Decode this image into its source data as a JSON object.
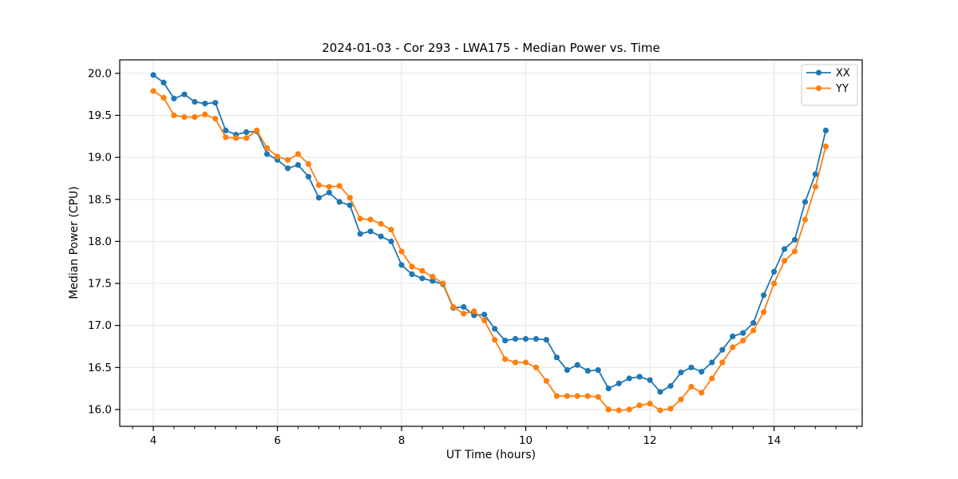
{
  "chart_data": {
    "type": "line",
    "title": "2024-01-03 - Cor 293 - LWA175 - Median Power vs. Time",
    "xlabel": "UT Time (hours)",
    "ylabel": "Median Power (CPU)",
    "xlim": [
      3.46,
      15.42
    ],
    "ylim": [
      15.8,
      20.16
    ],
    "xticks": [
      4,
      6,
      8,
      10,
      12,
      14
    ],
    "xtick_labels": [
      "4",
      "6",
      "8",
      "10",
      "12",
      "14"
    ],
    "yticks": [
      16.0,
      16.5,
      17.0,
      17.5,
      18.0,
      18.5,
      19.0,
      19.5,
      20.0
    ],
    "ytick_labels": [
      "16.0",
      "16.5",
      "17.0",
      "17.5",
      "18.0",
      "18.5",
      "19.0",
      "19.5",
      "20.0"
    ],
    "x_minor_step": 0.3333,
    "grid": true,
    "grid_color": "#e5e5e5",
    "axes_color": "#000000",
    "background": "#ffffff",
    "marker": "circle",
    "legend": {
      "position": "upper right"
    },
    "x": [
      4.0,
      4.167,
      4.333,
      4.5,
      4.667,
      4.833,
      5.0,
      5.167,
      5.333,
      5.5,
      5.667,
      5.833,
      6.0,
      6.167,
      6.333,
      6.5,
      6.667,
      6.833,
      7.0,
      7.167,
      7.333,
      7.5,
      7.667,
      7.833,
      8.0,
      8.167,
      8.333,
      8.5,
      8.667,
      8.833,
      9.0,
      9.167,
      9.333,
      9.5,
      9.667,
      9.833,
      10.0,
      10.167,
      10.333,
      10.5,
      10.667,
      10.833,
      11.0,
      11.167,
      11.333,
      11.5,
      11.667,
      11.833,
      12.0,
      12.167,
      12.333,
      12.5,
      12.667,
      12.833,
      13.0,
      13.167,
      13.333,
      13.5,
      13.667,
      13.833,
      14.0,
      14.167,
      14.333,
      14.5,
      14.667,
      14.833
    ],
    "series": [
      {
        "name": "XX",
        "color": "#1f77b4",
        "values": [
          19.98,
          19.89,
          19.7,
          19.75,
          19.66,
          19.64,
          19.65,
          19.32,
          19.27,
          19.3,
          19.31,
          19.04,
          18.97,
          18.87,
          18.91,
          18.77,
          18.52,
          18.58,
          18.47,
          18.43,
          18.09,
          18.12,
          18.06,
          18.0,
          17.72,
          17.61,
          17.56,
          17.53,
          17.49,
          17.21,
          17.22,
          17.12,
          17.13,
          16.96,
          16.82,
          16.84,
          16.84,
          16.84,
          16.83,
          16.62,
          16.47,
          16.53,
          16.46,
          16.47,
          16.25,
          16.31,
          16.37,
          16.39,
          16.35,
          16.21,
          16.28,
          16.44,
          16.5,
          16.45,
          16.56,
          16.71,
          16.87,
          16.91,
          17.03,
          17.36,
          17.64,
          17.91,
          18.02,
          18.47,
          18.8,
          19.32
        ]
      },
      {
        "name": "YY",
        "color": "#ff7f0e",
        "values": [
          19.79,
          19.71,
          19.5,
          19.48,
          19.48,
          19.51,
          19.46,
          19.24,
          19.23,
          19.23,
          19.32,
          19.11,
          19.01,
          18.97,
          19.04,
          18.92,
          18.67,
          18.65,
          18.66,
          18.52,
          18.27,
          18.26,
          18.21,
          18.14,
          17.88,
          17.7,
          17.65,
          17.58,
          17.5,
          17.22,
          17.14,
          17.17,
          17.06,
          16.83,
          16.6,
          16.56,
          16.56,
          16.5,
          16.34,
          16.16,
          16.16,
          16.16,
          16.16,
          16.15,
          16.0,
          15.99,
          16.0,
          16.05,
          16.07,
          15.99,
          16.01,
          16.12,
          16.27,
          16.2,
          16.37,
          16.56,
          16.74,
          16.82,
          16.94,
          17.16,
          17.5,
          17.77,
          17.88,
          18.26,
          18.65,
          19.13
        ]
      }
    ]
  }
}
